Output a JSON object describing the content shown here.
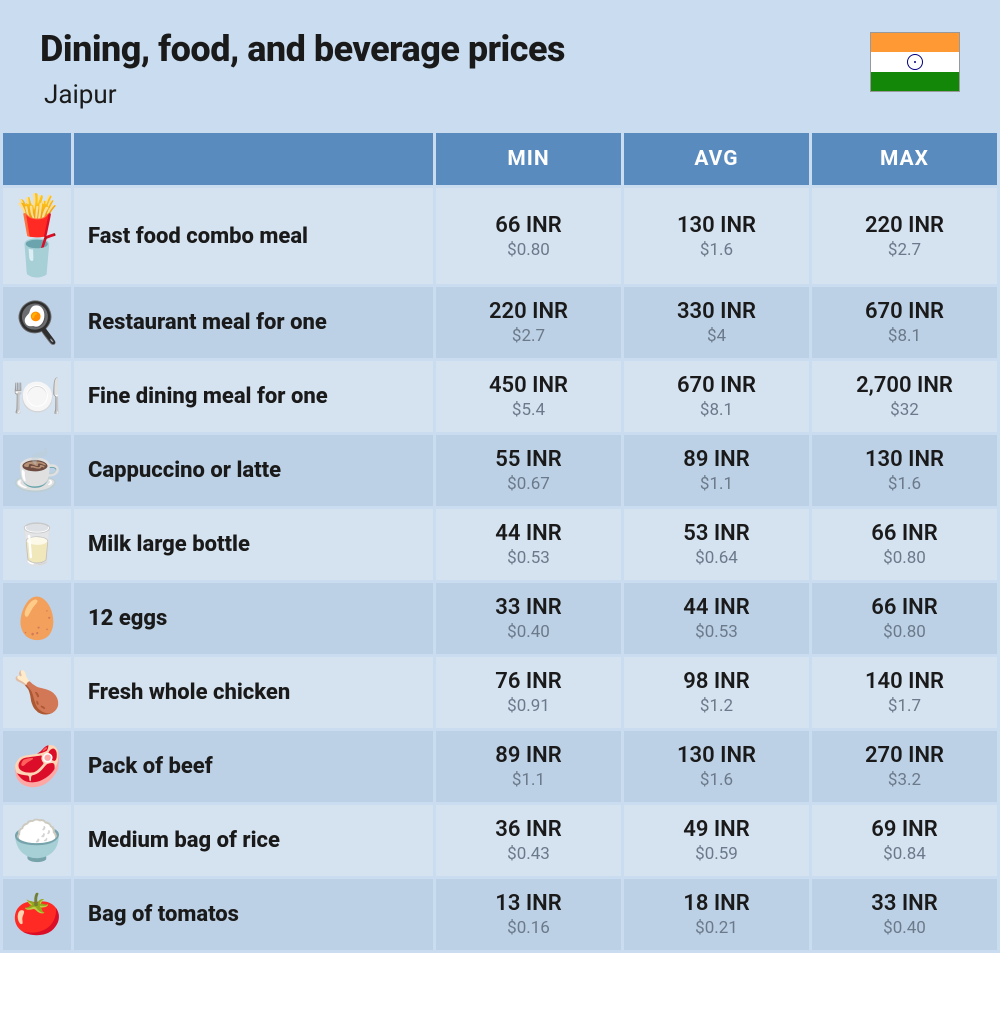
{
  "header": {
    "title": "Dining, food, and beverage prices",
    "subtitle": "Jaipur"
  },
  "columns": {
    "min": "MIN",
    "avg": "AVG",
    "max": "MAX"
  },
  "colors": {
    "page_bg": "#cadcef",
    "header_cell_bg": "#5a8bbf",
    "header_cell_text": "#ffffff",
    "row_light_bg": "#d5e2f0",
    "row_dark_bg": "#bdd1e6",
    "primary_text": "#1a1a1a",
    "secondary_text": "#6b7a8a"
  },
  "rows": [
    {
      "icon": "fast-food-icon",
      "glyph": "🍟🥤",
      "name": "Fast food combo meal",
      "min_inr": "66 INR",
      "min_usd": "$0.80",
      "avg_inr": "130 INR",
      "avg_usd": "$1.6",
      "max_inr": "220 INR",
      "max_usd": "$2.7"
    },
    {
      "icon": "restaurant-meal-icon",
      "glyph": "🍳",
      "name": "Restaurant meal for one",
      "min_inr": "220 INR",
      "min_usd": "$2.7",
      "avg_inr": "330 INR",
      "avg_usd": "$4",
      "max_inr": "670 INR",
      "max_usd": "$8.1"
    },
    {
      "icon": "fine-dining-icon",
      "glyph": "🍽️",
      "name": "Fine dining meal for one",
      "min_inr": "450 INR",
      "min_usd": "$5.4",
      "avg_inr": "670 INR",
      "avg_usd": "$8.1",
      "max_inr": "2,700 INR",
      "max_usd": "$32"
    },
    {
      "icon": "coffee-icon",
      "glyph": "☕",
      "name": "Cappuccino or latte",
      "min_inr": "55 INR",
      "min_usd": "$0.67",
      "avg_inr": "89 INR",
      "avg_usd": "$1.1",
      "max_inr": "130 INR",
      "max_usd": "$1.6"
    },
    {
      "icon": "milk-icon",
      "glyph": "🥛",
      "name": "Milk large bottle",
      "min_inr": "44 INR",
      "min_usd": "$0.53",
      "avg_inr": "53 INR",
      "avg_usd": "$0.64",
      "max_inr": "66 INR",
      "max_usd": "$0.80"
    },
    {
      "icon": "eggs-icon",
      "glyph": "🥚",
      "name": "12 eggs",
      "min_inr": "33 INR",
      "min_usd": "$0.40",
      "avg_inr": "44 INR",
      "avg_usd": "$0.53",
      "max_inr": "66 INR",
      "max_usd": "$0.80"
    },
    {
      "icon": "chicken-icon",
      "glyph": "🍗",
      "name": "Fresh whole chicken",
      "min_inr": "76 INR",
      "min_usd": "$0.91",
      "avg_inr": "98 INR",
      "avg_usd": "$1.2",
      "max_inr": "140 INR",
      "max_usd": "$1.7"
    },
    {
      "icon": "beef-icon",
      "glyph": "🥩",
      "name": "Pack of beef",
      "min_inr": "89 INR",
      "min_usd": "$1.1",
      "avg_inr": "130 INR",
      "avg_usd": "$1.6",
      "max_inr": "270 INR",
      "max_usd": "$3.2"
    },
    {
      "icon": "rice-icon",
      "glyph": "🍚",
      "name": "Medium bag of rice",
      "min_inr": "36 INR",
      "min_usd": "$0.43",
      "avg_inr": "49 INR",
      "avg_usd": "$0.59",
      "max_inr": "69 INR",
      "max_usd": "$0.84"
    },
    {
      "icon": "tomato-icon",
      "glyph": "🍅",
      "name": "Bag of tomatos",
      "min_inr": "13 INR",
      "min_usd": "$0.16",
      "avg_inr": "18 INR",
      "avg_usd": "$0.21",
      "max_inr": "33 INR",
      "max_usd": "$0.40"
    }
  ]
}
